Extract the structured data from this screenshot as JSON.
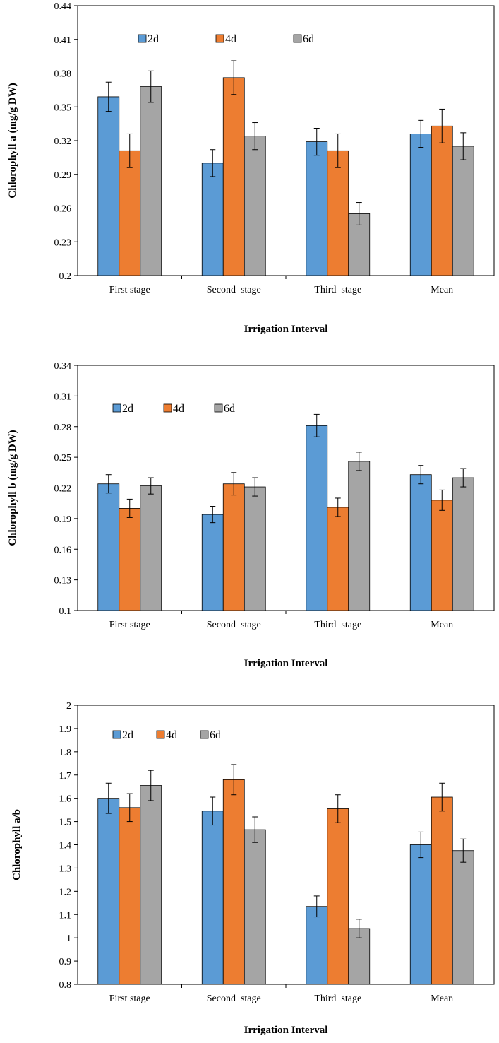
{
  "chart_data": [
    {
      "type": "bar",
      "categories": [
        "First stage",
        "Second  stage",
        "Third  stage",
        "Mean"
      ],
      "series": [
        {
          "name": "2d",
          "color": "#5B9BD5",
          "values": [
            0.359,
            0.3,
            0.319,
            0.326
          ],
          "errors": [
            0.013,
            0.012,
            0.012,
            0.012
          ]
        },
        {
          "name": "4d",
          "color": "#ED7D31",
          "values": [
            0.311,
            0.376,
            0.311,
            0.333
          ],
          "errors": [
            0.015,
            0.015,
            0.015,
            0.015
          ]
        },
        {
          "name": "6d",
          "color": "#A5A5A5",
          "values": [
            0.368,
            0.324,
            0.255,
            0.315
          ],
          "errors": [
            0.014,
            0.012,
            0.01,
            0.012
          ]
        }
      ],
      "title": "",
      "xlabel": "Irrigation Interval",
      "ylabel": "Chlorophyll a (mg/g DW)",
      "ylim": [
        0.2,
        0.44
      ],
      "yticks": [
        "0.2",
        "0.23",
        "0.26",
        "0.29",
        "0.32",
        "0.35",
        "0.38",
        "0.41",
        "0.44"
      ],
      "grid": false,
      "legend": "top-left"
    },
    {
      "type": "bar",
      "categories": [
        "First stage",
        "Second  stage",
        "Third  stage",
        "Mean"
      ],
      "series": [
        {
          "name": "2d",
          "color": "#5B9BD5",
          "values": [
            0.224,
            0.194,
            0.281,
            0.233
          ],
          "errors": [
            0.009,
            0.008,
            0.011,
            0.009
          ]
        },
        {
          "name": "4d",
          "color": "#ED7D31",
          "values": [
            0.2,
            0.224,
            0.201,
            0.208
          ],
          "errors": [
            0.009,
            0.011,
            0.009,
            0.01
          ]
        },
        {
          "name": "6d",
          "color": "#A5A5A5",
          "values": [
            0.222,
            0.221,
            0.246,
            0.23
          ],
          "errors": [
            0.008,
            0.009,
            0.009,
            0.009
          ]
        }
      ],
      "title": "",
      "xlabel": "Irrigation Interval",
      "ylabel": "Chlorophyll b (mg/g DW)",
      "ylim": [
        0.1,
        0.34
      ],
      "yticks": [
        "0.1",
        "0.13",
        "0.16",
        "0.19",
        "0.22",
        "0.25",
        "0.28",
        "0.31",
        "0.34"
      ],
      "grid": false,
      "legend": "top-left"
    },
    {
      "type": "bar",
      "categories": [
        "First stage",
        "Second  stage",
        "Third  stage",
        "Mean"
      ],
      "series": [
        {
          "name": "2d",
          "color": "#5B9BD5",
          "values": [
            1.6,
            1.545,
            1.135,
            1.4
          ],
          "errors": [
            0.065,
            0.06,
            0.045,
            0.055
          ]
        },
        {
          "name": "4d",
          "color": "#ED7D31",
          "values": [
            1.56,
            1.68,
            1.555,
            1.605
          ],
          "errors": [
            0.06,
            0.065,
            0.06,
            0.06
          ]
        },
        {
          "name": "6d",
          "color": "#A5A5A5",
          "values": [
            1.655,
            1.465,
            1.04,
            1.375
          ],
          "errors": [
            0.065,
            0.055,
            0.04,
            0.05
          ]
        }
      ],
      "title": "",
      "xlabel": "Irrigation Interval",
      "ylabel": "Chlorophyll a/b",
      "ylim": [
        0.8,
        2.0
      ],
      "yticks": [
        "0.8",
        "0.9",
        "1",
        "1.1",
        "1.2",
        "1.3",
        "1.4",
        "1.5",
        "1.6",
        "1.7",
        "1.8",
        "1.9",
        "2"
      ],
      "grid": false,
      "legend": "top-left"
    }
  ]
}
